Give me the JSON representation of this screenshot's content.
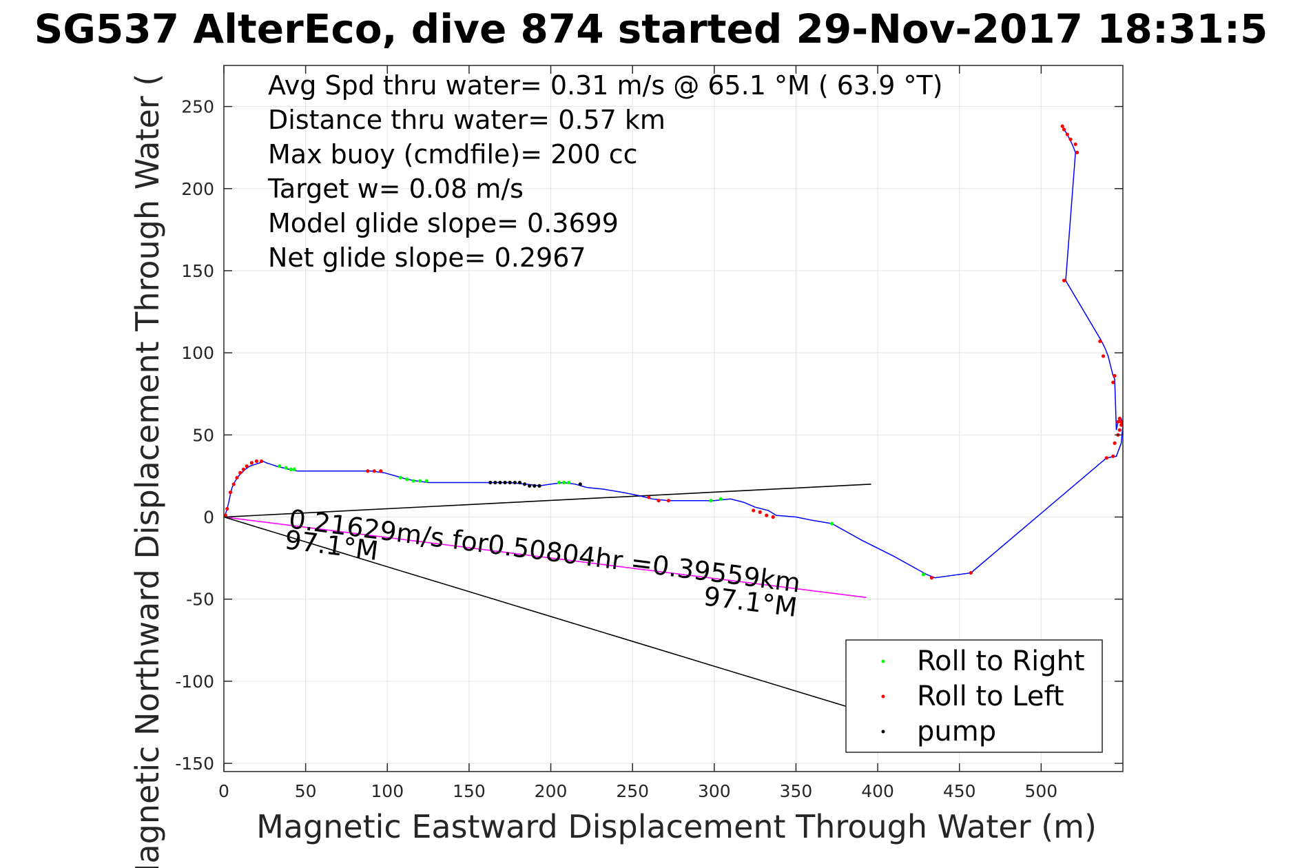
{
  "chart_data": {
    "type": "line",
    "title": "SG537 AlterEco, dive 874 started 29-Nov-2017 18:31:5",
    "xlabel": "Magnetic Eastward Displacement Through Water (m)",
    "ylabel": "Magnetic Northward Displacement Through Water (",
    "xlim": [
      0,
      550
    ],
    "ylim": [
      -155,
      275
    ],
    "xticks": [
      0,
      50,
      100,
      150,
      200,
      250,
      300,
      350,
      400,
      450,
      500
    ],
    "yticks": [
      -150,
      -100,
      -50,
      0,
      50,
      100,
      150,
      200,
      250
    ],
    "grid": true,
    "annotations": [
      "Avg Spd thru water=  0.31 m/s @  65.1 °M ( 63.9 °T)",
      "Distance thru water=  0.57 km",
      "Max buoy (cmdfile)= 200 cc",
      "Target w= 0.08 m/s",
      "Model glide slope= 0.3699",
      "Net glide slope= 0.2967"
    ],
    "vector_labels": {
      "speed": "0.21629m/s for0.50804hr =0.39559km",
      "heading_start": "97.1°M",
      "heading_end": "97.1°M"
    },
    "reference_lines": [
      {
        "color": "#000000",
        "x": [
          0,
          396
        ],
        "y": [
          0,
          20
        ]
      },
      {
        "color": "#ff00ff",
        "x": [
          0,
          393
        ],
        "y": [
          0,
          -49
        ]
      },
      {
        "color": "#000000",
        "x": [
          0,
          383
        ],
        "y": [
          0,
          -116
        ]
      }
    ],
    "track": {
      "color": "#0000ff",
      "x": [
        0,
        1,
        2,
        3,
        4,
        5,
        6,
        7,
        9,
        11,
        13,
        16,
        19,
        22,
        24,
        26,
        29,
        32,
        36,
        40,
        45,
        60,
        80,
        90,
        98,
        105,
        112,
        118,
        125,
        135,
        150,
        165,
        175,
        185,
        193,
        200,
        208,
        215,
        222,
        232,
        244,
        254,
        262,
        272,
        285,
        300,
        310,
        318,
        325,
        333,
        338,
        350,
        360,
        372,
        390,
        410,
        430,
        435,
        457,
        540,
        546,
        549,
        550,
        549,
        547,
        546,
        545,
        544,
        541,
        539,
        537,
        515,
        521,
        519,
        516,
        514,
        513
      ],
      "y": [
        0,
        2,
        5,
        9,
        14,
        18,
        20,
        22,
        25,
        27,
        29,
        31,
        32,
        33,
        34,
        33,
        32,
        31,
        30,
        29,
        28,
        28,
        28,
        28,
        27,
        25,
        23,
        22,
        21,
        21,
        21,
        21,
        21,
        20,
        19,
        20,
        21,
        20,
        18,
        17,
        15,
        13,
        11,
        10,
        10,
        10,
        11,
        9,
        6,
        4,
        1,
        0,
        -2,
        -4,
        -14,
        -24,
        -35,
        -37,
        -34,
        36,
        37,
        45,
        56,
        60,
        58,
        53,
        84,
        86,
        98,
        103,
        107,
        144,
        222,
        227,
        233,
        236,
        238
      ]
    },
    "markers": [
      {
        "name": "Roll to Right",
        "color": "#00ff00",
        "x": [
          34,
          38,
          41,
          43,
          108,
          112,
          116,
          120,
          124,
          205,
          208,
          211,
          298,
          304,
          372,
          428
        ],
        "y": [
          31,
          30,
          29,
          29,
          24,
          23,
          22,
          22,
          22,
          21,
          21,
          21,
          10,
          11,
          -4,
          -35
        ]
      },
      {
        "name": "Roll to Left",
        "color": "#ff0000",
        "x": [
          1,
          2,
          4,
          6,
          8,
          10,
          12,
          14,
          17,
          20,
          23,
          88,
          92,
          96,
          260,
          266,
          272,
          324,
          328,
          332,
          336,
          433,
          457,
          513,
          514,
          516,
          518,
          521,
          522,
          540,
          544,
          545,
          547,
          548,
          549,
          549,
          548,
          547,
          545,
          544,
          538,
          536,
          514
        ],
        "y": [
          1,
          5,
          15,
          20,
          24,
          27,
          29,
          31,
          33,
          34,
          34,
          28,
          28,
          28,
          12,
          10,
          10,
          4,
          3,
          1,
          0,
          -37,
          -34,
          238,
          236,
          233,
          230,
          227,
          222,
          36,
          37,
          45,
          50,
          53,
          56,
          58,
          60,
          58,
          86,
          82,
          98,
          107,
          144
        ]
      },
      {
        "name": "pump",
        "color": "#000000",
        "x": [
          163,
          166,
          169,
          172,
          175,
          178,
          181,
          184,
          187,
          190,
          193,
          218
        ],
        "y": [
          21,
          21,
          21,
          21,
          21,
          21,
          21,
          20,
          19,
          19,
          19,
          20
        ]
      }
    ],
    "legend": {
      "placement": "bottom-right",
      "entries": [
        "Roll to Right",
        "Roll to Left",
        "pump"
      ]
    }
  }
}
